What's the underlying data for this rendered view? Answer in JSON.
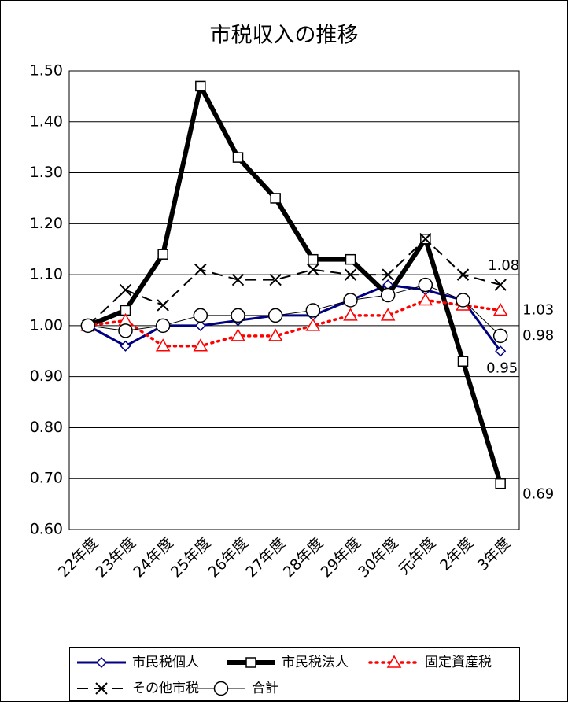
{
  "chart_data": {
    "type": "line",
    "title": "市税収入の推移",
    "categories": [
      "22年度",
      "23年度",
      "24年度",
      "25年度",
      "26年度",
      "27年度",
      "28年度",
      "29年度",
      "30年度",
      "元年度",
      "2年度",
      "3年度"
    ],
    "series": [
      {
        "name": "市民税個人",
        "color": "#000080",
        "values": [
          1.0,
          0.96,
          1.0,
          1.0,
          1.01,
          1.02,
          1.02,
          1.05,
          1.08,
          1.07,
          1.05,
          0.95
        ]
      },
      {
        "name": "市民税法人",
        "color": "#000000",
        "values": [
          1.0,
          1.03,
          1.14,
          1.47,
          1.33,
          1.25,
          1.13,
          1.13,
          1.06,
          1.17,
          0.93,
          0.69
        ]
      },
      {
        "name": "固定資産税",
        "color": "#ff0000",
        "values": [
          1.0,
          1.01,
          0.96,
          0.96,
          0.98,
          0.98,
          1.0,
          1.02,
          1.02,
          1.05,
          1.04,
          1.03
        ]
      },
      {
        "name": "その他市税",
        "color": "#000000",
        "values": [
          1.0,
          1.07,
          1.04,
          1.11,
          1.09,
          1.09,
          1.11,
          1.1,
          1.1,
          1.17,
          1.1,
          1.08
        ]
      },
      {
        "name": "合計",
        "color": "#000000",
        "values": [
          1.0,
          0.99,
          1.0,
          1.02,
          1.02,
          1.02,
          1.03,
          1.05,
          1.06,
          1.08,
          1.05,
          0.98
        ]
      }
    ],
    "ylim": [
      0.6,
      1.5
    ],
    "yticks": [
      {
        "value": 0.6,
        "label": "0.60"
      },
      {
        "value": 0.7,
        "label": "0.70"
      },
      {
        "value": 0.8,
        "label": "0.80"
      },
      {
        "value": 0.9,
        "label": "0.90"
      },
      {
        "value": 1.0,
        "label": "1.00"
      },
      {
        "value": 1.1,
        "label": "1.10"
      },
      {
        "value": 1.2,
        "label": "1.20"
      },
      {
        "value": 1.3,
        "label": "1.30"
      },
      {
        "value": 1.4,
        "label": "1.40"
      },
      {
        "value": 1.5,
        "label": "1.50"
      }
    ],
    "grid": true,
    "legend": "bottom",
    "data_labels": "last"
  }
}
